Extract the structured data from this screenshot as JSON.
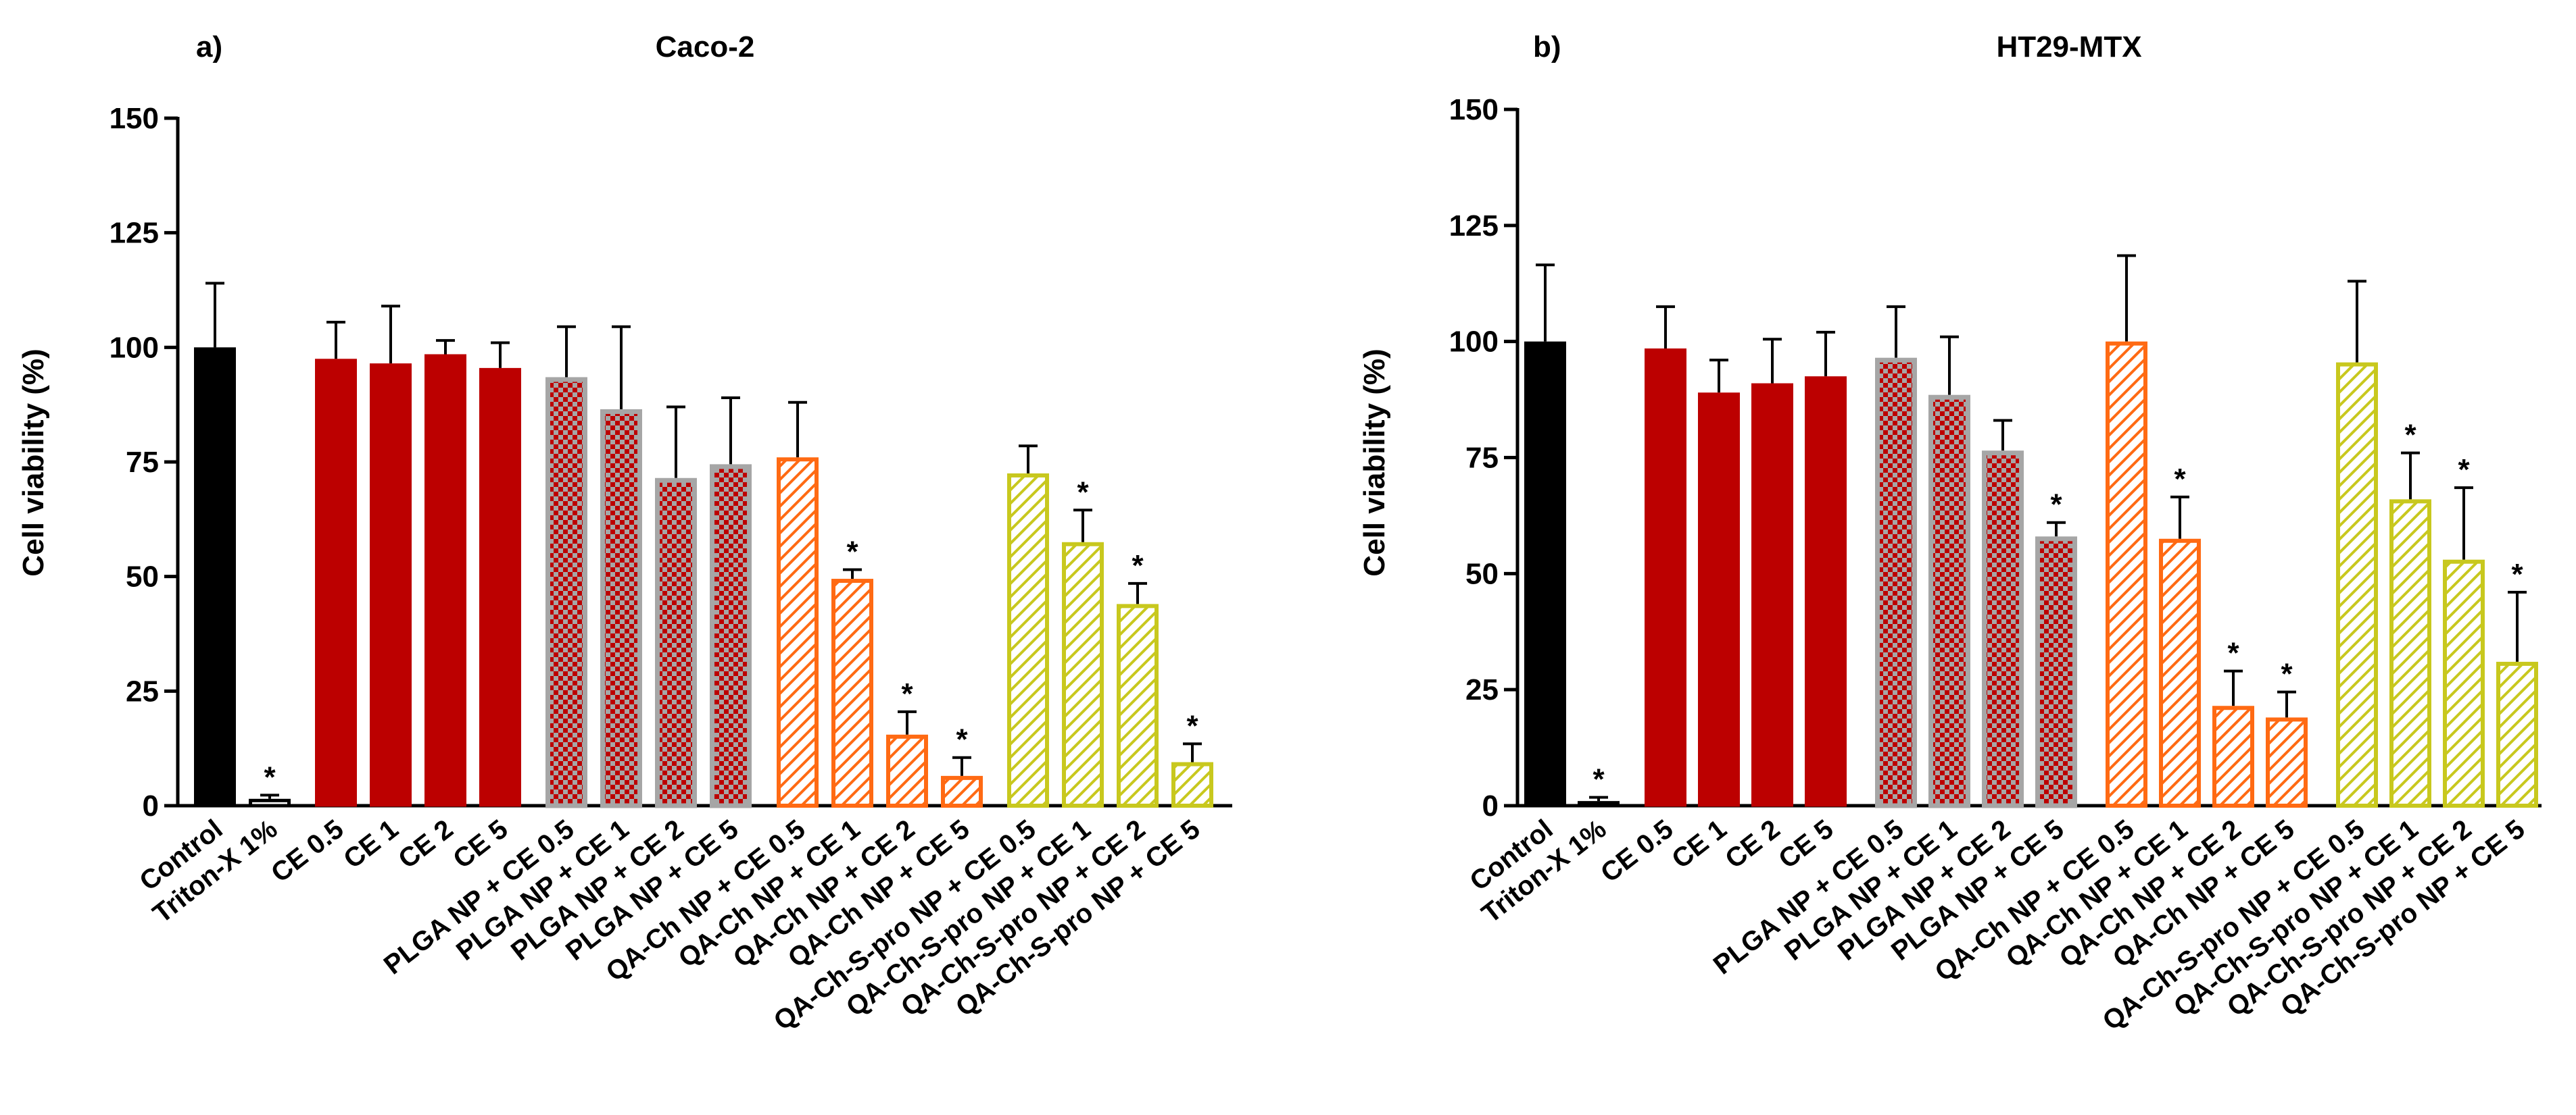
{
  "colors": {
    "black": "#000000",
    "dark_red": "#BC0000",
    "gray_border": "#A6A6A6",
    "orange": "#FF6A13",
    "yellow_green": "#C8C81E",
    "white": "#FFFFFF"
  },
  "chart_data": [
    {
      "type": "bar",
      "panel_label": "a)",
      "title": "Caco-2",
      "ylabel": "Cell viability (%)",
      "ylim": [
        0,
        150
      ],
      "yticks": [
        "0",
        "25",
        "50",
        "75",
        "100",
        "125",
        "150"
      ],
      "grid": false,
      "categories": [
        "Control",
        "Triton-X 1%",
        "CE 0.5",
        "CE 1",
        "CE 2",
        "CE 5",
        "PLGA NP + CE 0.5",
        "PLGA NP + CE 1",
        "PLGA NP + CE 2",
        "PLGA NP + CE 5",
        "QA-Ch NP + CE 0.5",
        "QA-Ch NP + CE 1",
        "QA-Ch NP + CE 2",
        "QA-Ch NP + CE 5",
        "QA-Ch-S-pro NP + CE 0.5",
        "QA-Ch-S-pro NP + CE 1",
        "QA-Ch-S-pro NP + CE 2",
        "QA-Ch-S-pro NP + CE 5"
      ],
      "values": [
        100,
        1.5,
        97.5,
        96.5,
        98.5,
        95.5,
        93.5,
        86.5,
        71.5,
        74.5,
        76,
        49.5,
        15.5,
        6.5,
        72.5,
        57.5,
        44,
        9.5
      ],
      "errors": [
        14,
        0.8,
        8,
        12.5,
        3,
        5.5,
        11,
        18,
        15.5,
        14.5,
        12,
        2,
        5,
        4,
        6,
        7,
        4.5,
        4
      ],
      "styles": [
        "control",
        "triton",
        "ce",
        "ce",
        "ce",
        "ce",
        "plga",
        "plga",
        "plga",
        "plga",
        "qach",
        "qach",
        "qach",
        "qach",
        "qachs",
        "qachs",
        "qachs",
        "qachs"
      ],
      "significance": [
        "",
        "*",
        "",
        "",
        "",
        "",
        "",
        "",
        "",
        "",
        "",
        "*",
        "*",
        "*",
        "",
        "*",
        "*",
        "*"
      ]
    },
    {
      "type": "bar",
      "panel_label": "b)",
      "title": "HT29-MTX",
      "ylabel": "Cell viability (%)",
      "ylim": [
        0,
        150
      ],
      "yticks": [
        "0",
        "25",
        "50",
        "75",
        "100",
        "125",
        "150"
      ],
      "grid": false,
      "categories": [
        "Control",
        "Triton-X 1%",
        "CE 0.5",
        "CE 1",
        "CE 2",
        "CE 5",
        "PLGA NP + CE 0.5",
        "PLGA NP + CE 1",
        "PLGA NP + CE 2",
        "PLGA NP + CE 5",
        "QA-Ch NP + CE 0.5",
        "QA-Ch NP + CE 1",
        "QA-Ch NP + CE 2",
        "QA-Ch NP + CE 5",
        "QA-Ch-S-pro NP + CE 0.5",
        "QA-Ch-S-pro NP + CE 1",
        "QA-Ch-S-pro NP + CE 2",
        "QA-Ch-S-pro NP + CE 5"
      ],
      "values": [
        100,
        1,
        98.5,
        89,
        91,
        92.5,
        96.5,
        88.5,
        76.5,
        58,
        100,
        57.5,
        21.5,
        19,
        95.5,
        66,
        53,
        31
      ],
      "errors": [
        16.5,
        0.8,
        9,
        7,
        9.5,
        9.5,
        11,
        12.5,
        6.5,
        3,
        18.5,
        9,
        7.5,
        5.5,
        17.5,
        10,
        15.5,
        15
      ],
      "styles": [
        "control",
        "triton",
        "ce",
        "ce",
        "ce",
        "ce",
        "plga",
        "plga",
        "plga",
        "plga",
        "qach",
        "qach",
        "qach",
        "qach",
        "qachs",
        "qachs",
        "qachs",
        "qachs"
      ],
      "significance": [
        "",
        "*",
        "",
        "",
        "",
        "",
        "",
        "",
        "",
        "*",
        "",
        "*",
        "*",
        "*",
        "",
        "*",
        "*",
        "*"
      ]
    }
  ]
}
